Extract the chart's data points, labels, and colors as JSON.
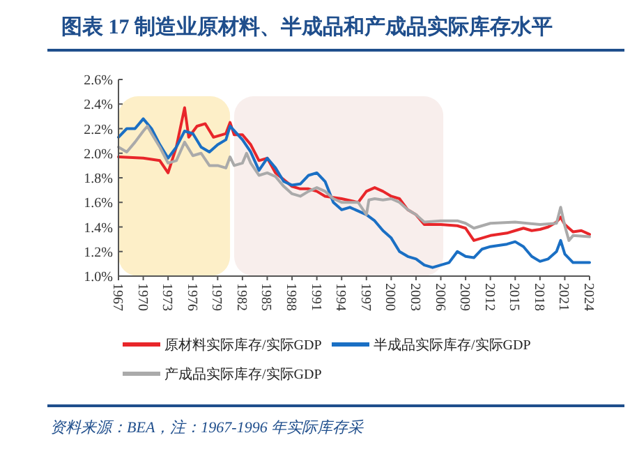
{
  "chart_data": {
    "type": "line",
    "title": "图表 17 制造业原材料、半成品和产成品实际库存水平",
    "xlim": [
      1967,
      2024
    ],
    "xticks": [
      1967,
      1970,
      1973,
      1976,
      1979,
      1982,
      1985,
      1988,
      1991,
      1994,
      1997,
      2000,
      2003,
      2006,
      2009,
      2012,
      2015,
      2018,
      2021,
      2024
    ],
    "ylim": [
      1.0,
      2.6
    ],
    "yticks": [
      {
        "value": 1.0,
        "label": "1.0%"
      },
      {
        "value": 1.2,
        "label": "1.2%"
      },
      {
        "value": 1.4,
        "label": "1.4%"
      },
      {
        "value": 1.6,
        "label": "1.6%"
      },
      {
        "value": 1.8,
        "label": "1.8%"
      },
      {
        "value": 2.0,
        "label": "2.0%"
      },
      {
        "value": 2.2,
        "label": "2.2%"
      },
      {
        "value": 2.4,
        "label": "2.4%"
      },
      {
        "value": 2.6,
        "label": "2.6%"
      }
    ],
    "grid": false,
    "legend": "bottom",
    "bands": [
      {
        "axis": "x",
        "from": 1967,
        "to": 1980.5,
        "color": "#fdefc8"
      },
      {
        "axis": "x",
        "from": 1981,
        "to": 2006.3,
        "color": "#f8eeec"
      }
    ],
    "series": [
      {
        "name": "原材料实际库存/实际GDP",
        "color": "#e8262a",
        "x": [
          1967,
          1970,
          1972,
          1973,
          1974,
          1975,
          1975.5,
          1976.5,
          1977.5,
          1978.5,
          1980,
          1980.5,
          1981,
          1982,
          1983,
          1984,
          1985,
          1986,
          1988,
          1989,
          1990,
          1991,
          1992,
          1993,
          1994,
          1996,
          1997,
          1998,
          1999,
          2000,
          2001,
          2002,
          2003,
          2004,
          2006,
          2008,
          2009,
          2010,
          2011,
          2012,
          2013,
          2014,
          2015,
          2016,
          2017,
          2018,
          2019,
          2020,
          2020.5,
          2021,
          2022,
          2023,
          2024
        ],
        "values": [
          1.97,
          1.96,
          1.94,
          1.84,
          2.05,
          2.37,
          2.13,
          2.22,
          2.24,
          2.13,
          2.16,
          2.25,
          2.15,
          2.15,
          2.07,
          1.94,
          1.96,
          1.84,
          1.73,
          1.71,
          1.71,
          1.69,
          1.65,
          1.64,
          1.63,
          1.6,
          1.69,
          1.72,
          1.69,
          1.65,
          1.63,
          1.54,
          1.5,
          1.42,
          1.42,
          1.41,
          1.39,
          1.29,
          1.31,
          1.33,
          1.34,
          1.35,
          1.37,
          1.39,
          1.37,
          1.38,
          1.4,
          1.44,
          1.48,
          1.42,
          1.36,
          1.37,
          1.34
        ]
      },
      {
        "name": "半成品实际库存/实际GDP",
        "color": "#1a6fc4",
        "x": [
          1967,
          1968,
          1969,
          1970,
          1971,
          1972,
          1973,
          1974,
          1975,
          1976,
          1977,
          1978,
          1979,
          1980,
          1980.5,
          1982,
          1983,
          1984,
          1985,
          1986,
          1987,
          1988,
          1989,
          1990,
          1991,
          1992,
          1993,
          1994,
          1995,
          1997,
          1998,
          1999,
          2000,
          2001,
          2002,
          2003,
          2004,
          2005,
          2006,
          2007,
          2008,
          2009,
          2010,
          2011,
          2012,
          2013,
          2014,
          2015,
          2016,
          2017,
          2018,
          2019,
          2020,
          2020.5,
          2021,
          2022,
          2023,
          2024
        ],
        "values": [
          2.13,
          2.2,
          2.2,
          2.28,
          2.2,
          2.07,
          1.96,
          2.05,
          2.18,
          2.16,
          2.05,
          2.01,
          2.07,
          2.11,
          2.22,
          2.11,
          2.01,
          1.86,
          1.96,
          1.88,
          1.77,
          1.74,
          1.75,
          1.82,
          1.84,
          1.77,
          1.6,
          1.54,
          1.56,
          1.5,
          1.45,
          1.37,
          1.31,
          1.2,
          1.16,
          1.14,
          1.09,
          1.07,
          1.09,
          1.11,
          1.2,
          1.16,
          1.15,
          1.22,
          1.24,
          1.25,
          1.26,
          1.28,
          1.24,
          1.16,
          1.12,
          1.14,
          1.2,
          1.29,
          1.18,
          1.11,
          1.11,
          1.11
        ]
      },
      {
        "name": "产成品实际库存/实际GDP",
        "color": "#aaaaaa",
        "x": [
          1967,
          1968,
          1969,
          1970,
          1970.5,
          1971,
          1972,
          1973,
          1974,
          1975,
          1976,
          1977,
          1978,
          1979,
          1980,
          1980.5,
          1981,
          1982,
          1982.5,
          1983,
          1984,
          1985,
          1986,
          1987,
          1988,
          1989,
          1990,
          1991,
          1992,
          1993,
          1994,
          1996,
          1997,
          1997.3,
          1998,
          1999,
          2000,
          2001,
          2002,
          2003,
          2004,
          2006,
          2008,
          2009,
          2010,
          2012,
          2015,
          2018,
          2020,
          2020.5,
          2021,
          2021.5,
          2022,
          2024
        ],
        "values": [
          2.05,
          2.01,
          2.09,
          2.18,
          2.22,
          2.16,
          2.05,
          1.92,
          1.94,
          2.09,
          1.98,
          2.0,
          1.9,
          1.9,
          1.88,
          1.97,
          1.9,
          1.92,
          2.0,
          1.92,
          1.82,
          1.84,
          1.81,
          1.73,
          1.67,
          1.65,
          1.69,
          1.72,
          1.69,
          1.63,
          1.6,
          1.6,
          1.5,
          1.62,
          1.63,
          1.62,
          1.63,
          1.6,
          1.54,
          1.5,
          1.44,
          1.45,
          1.45,
          1.43,
          1.39,
          1.43,
          1.44,
          1.42,
          1.43,
          1.56,
          1.41,
          1.29,
          1.33,
          1.32
        ]
      }
    ],
    "annotations": [
      "资料来源：BEA，注：1967-1996 年实际库存采"
    ]
  }
}
